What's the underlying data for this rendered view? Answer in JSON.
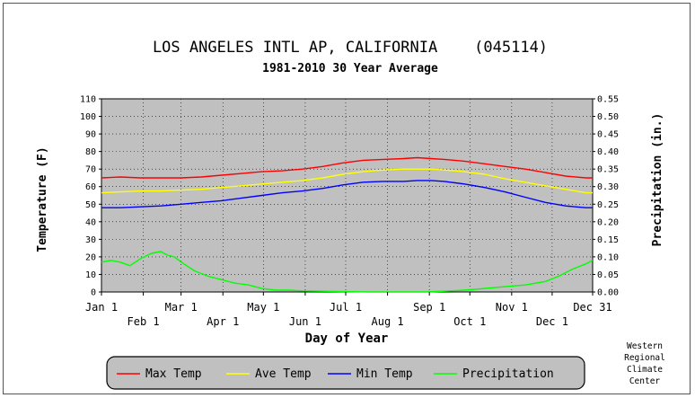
{
  "chart_data": {
    "type": "line",
    "title": "LOS ANGELES INTL AP, CALIFORNIA    (045114)",
    "subtitle": "1981-2010 30 Year Average",
    "xlabel": "Day of Year",
    "ylabel_left": "Temperature (F)",
    "ylabel_right": "Precipitation (in.)",
    "ylim_left": [
      0,
      110
    ],
    "ylim_right": [
      0,
      0.55
    ],
    "yticks_left": [
      "0",
      "10",
      "20",
      "30",
      "40",
      "50",
      "60",
      "70",
      "80",
      "90",
      "100",
      "110"
    ],
    "yticks_right": [
      "0.00",
      "0.05",
      "0.10",
      "0.15",
      "0.20",
      "0.25",
      "0.30",
      "0.35",
      "0.40",
      "0.45",
      "0.50",
      "0.55"
    ],
    "xlim": [
      1,
      365
    ],
    "xticks_top": [
      {
        "day": 1,
        "label": "Jan 1"
      },
      {
        "day": 60,
        "label": "Mar 1"
      },
      {
        "day": 121,
        "label": "May 1"
      },
      {
        "day": 182,
        "label": "Jul 1"
      },
      {
        "day": 244,
        "label": "Sep 1"
      },
      {
        "day": 305,
        "label": "Nov 1"
      },
      {
        "day": 365,
        "label": "Dec 31"
      }
    ],
    "xticks_bottom": [
      {
        "day": 32,
        "label": "Feb 1"
      },
      {
        "day": 91,
        "label": "Apr 1"
      },
      {
        "day": 152,
        "label": "Jun 1"
      },
      {
        "day": 213,
        "label": "Aug 1"
      },
      {
        "day": 274,
        "label": "Oct 1"
      },
      {
        "day": 335,
        "label": "Dec 1"
      }
    ],
    "grid": true,
    "legend_position": "bottom",
    "plot_background": "#c0c0c0",
    "series": [
      {
        "name": "Max Temp",
        "color": "#ff0000",
        "axis": "left",
        "x": [
          1,
          15,
          30,
          45,
          60,
          75,
          90,
          105,
          120,
          135,
          150,
          165,
          180,
          195,
          210,
          225,
          235,
          245,
          255,
          270,
          285,
          300,
          315,
          330,
          345,
          360,
          365
        ],
        "y": [
          65,
          65.5,
          65,
          65,
          65,
          65.5,
          66.5,
          67.5,
          68.5,
          69,
          70,
          71.5,
          73.5,
          75,
          75.5,
          76,
          76.5,
          76,
          75.5,
          74.5,
          73,
          71.5,
          70,
          68,
          66,
          65,
          65
        ]
      },
      {
        "name": "Ave Temp",
        "color": "#ffff00",
        "axis": "left",
        "x": [
          1,
          15,
          30,
          45,
          60,
          75,
          90,
          105,
          120,
          135,
          150,
          165,
          180,
          195,
          210,
          225,
          235,
          245,
          255,
          270,
          285,
          300,
          315,
          330,
          345,
          360,
          365
        ],
        "y": [
          56.5,
          57,
          57.5,
          57.5,
          58,
          58.5,
          59.5,
          60.5,
          61.5,
          62.5,
          63.5,
          65,
          67,
          68.5,
          69.5,
          70,
          70,
          70,
          69.5,
          68.5,
          67,
          64.5,
          62.5,
          60.5,
          58.5,
          56.5,
          56.5
        ]
      },
      {
        "name": "Min Temp",
        "color": "#0000ff",
        "axis": "left",
        "x": [
          1,
          15,
          30,
          45,
          60,
          75,
          90,
          105,
          120,
          135,
          150,
          165,
          180,
          195,
          210,
          225,
          235,
          245,
          255,
          270,
          285,
          300,
          315,
          330,
          345,
          360,
          365
        ],
        "y": [
          48,
          48,
          48.5,
          49,
          50,
          51,
          52,
          53.5,
          55,
          56.5,
          57.5,
          59,
          61,
          62.5,
          63,
          63,
          63.5,
          63.5,
          63,
          61.5,
          59.5,
          57,
          54,
          51,
          49,
          48,
          48
        ]
      },
      {
        "name": "Precipitation",
        "color": "#00ff00",
        "axis": "right",
        "x": [
          1,
          8,
          15,
          22,
          30,
          38,
          45,
          50,
          55,
          62,
          70,
          80,
          90,
          100,
          110,
          120,
          130,
          140,
          150,
          165,
          180,
          200,
          220,
          240,
          255,
          270,
          285,
          300,
          315,
          330,
          340,
          350,
          360,
          365
        ],
        "y": [
          0.085,
          0.09,
          0.085,
          0.075,
          0.095,
          0.11,
          0.115,
          0.105,
          0.1,
          0.08,
          0.06,
          0.045,
          0.035,
          0.025,
          0.02,
          0.01,
          0.005,
          0.005,
          0.003,
          0.002,
          0.001,
          0.0,
          0.0,
          0.0,
          0.002,
          0.005,
          0.01,
          0.015,
          0.02,
          0.03,
          0.045,
          0.065,
          0.08,
          0.09
        ]
      }
    ]
  },
  "credit": [
    "Western",
    "Regional",
    "Climate",
    "Center"
  ]
}
